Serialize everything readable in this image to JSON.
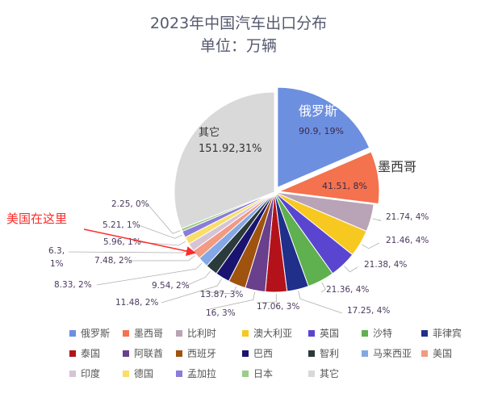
{
  "chart_data": {
    "type": "pie",
    "title": "2023年中国汽车出口分布",
    "subtitle": "单位：万辆",
    "series": [
      {
        "name": "俄罗斯",
        "value": 90.9,
        "percent": 19,
        "label": "90.9, 19%",
        "color": "#6d8fe0"
      },
      {
        "name": "墨西哥",
        "value": 41.51,
        "percent": 8,
        "label": "41.51, 8%",
        "color": "#f4724e"
      },
      {
        "name": "比利时",
        "value": 21.74,
        "percent": 4,
        "label": "21.74, 4%",
        "color": "#b9a3b6"
      },
      {
        "name": "澳大利亚",
        "value": 21.46,
        "percent": 4,
        "label": "21.46, 4%",
        "color": "#f7c81f"
      },
      {
        "name": "英国",
        "value": 21.38,
        "percent": 4,
        "label": "21.38, 4%",
        "color": "#5a45d1"
      },
      {
        "name": "沙特",
        "value": 21.36,
        "percent": 4,
        "label": "21.36, 4%",
        "color": "#5fb04e"
      },
      {
        "name": "菲律宾",
        "value": 17.25,
        "percent": 4,
        "label": "17.25, 4%",
        "color": "#1f2f8a"
      },
      {
        "name": "泰国",
        "value": 17.06,
        "percent": 3,
        "label": "17.06, 3%",
        "color": "#b3121b"
      },
      {
        "name": "阿联酋",
        "value": 16,
        "percent": 3,
        "label": "16, 3%",
        "color": "#6a3f8c"
      },
      {
        "name": "西班牙",
        "value": 13.87,
        "percent": 3,
        "label": "13.87, 3%",
        "color": "#a0520f"
      },
      {
        "name": "巴西",
        "value": 11.48,
        "percent": 2,
        "label": "11.48, 2%",
        "color": "#1a1470"
      },
      {
        "name": "智利",
        "value": 9.54,
        "percent": 2,
        "label": "9.54, 2%",
        "color": "#2b3a3a"
      },
      {
        "name": "马来西亚",
        "value": 8.33,
        "percent": 2,
        "label": "8.33, 2%",
        "color": "#84a8e6"
      },
      {
        "name": "美国",
        "value": 7.48,
        "percent": 2,
        "label": "7.48, 2%",
        "color": "#f29a82"
      },
      {
        "name": "印度",
        "value": 6.3,
        "percent": 1,
        "label_line1": "6.3,",
        "label_line2": "1%",
        "color": "#d6c4d6"
      },
      {
        "name": "德国",
        "value": 5.96,
        "percent": 1,
        "label": "5.96, 1%",
        "color": "#f8de6a"
      },
      {
        "name": "孟加拉",
        "value": 5.21,
        "percent": 1,
        "label": "5.21, 1%",
        "color": "#8a7cd8"
      },
      {
        "name": "日本",
        "value": 2.25,
        "percent": 0,
        "label": "2.25, 0%",
        "color": "#9ccc8a"
      },
      {
        "name": "其它",
        "value": 151.92,
        "percent": 31,
        "label_line1": "其它",
        "label_line2": "151.92,31%",
        "color": "#d9d9d9"
      }
    ],
    "legend_position": "bottom",
    "annotation": "美国在这里",
    "annotation_color": "#ff2a2a"
  }
}
